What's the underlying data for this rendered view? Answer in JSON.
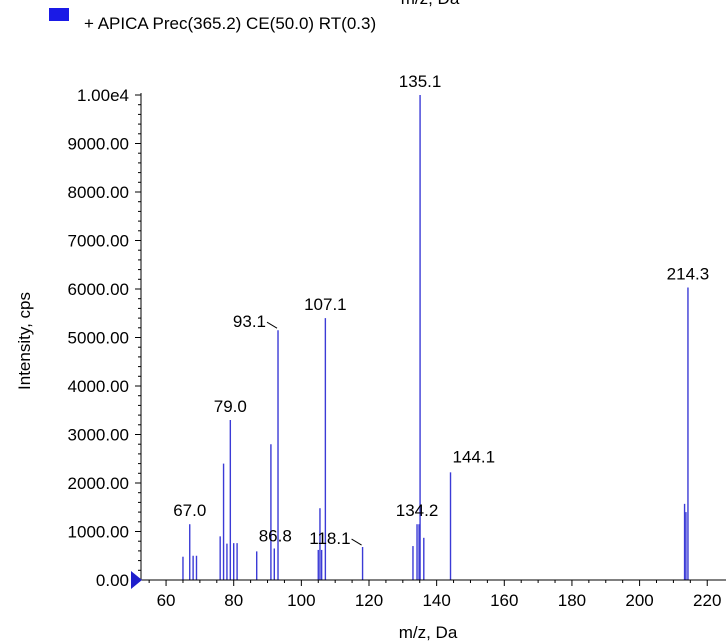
{
  "colors": {
    "series": "#3b3bd6",
    "legend_swatch": "#1a1ae6",
    "marker": "#1f1fcc",
    "axis": "#000000"
  },
  "chart_data": {
    "type": "bar",
    "title": "",
    "top_axis_label_partial": "m/z, Da",
    "xlabel": "m/z, Da",
    "ylabel": "Intensity, cps",
    "xlim": [
      52,
      222
    ],
    "ylim": [
      0,
      10000
    ],
    "x_ticks": [
      60,
      80,
      100,
      120,
      140,
      160,
      180,
      200,
      220
    ],
    "x_tick_labels": [
      "60",
      "80",
      "100",
      "120",
      "140",
      "160",
      "180",
      "200",
      "220"
    ],
    "y_ticks": [
      0,
      1000,
      2000,
      3000,
      4000,
      5000,
      6000,
      7000,
      8000,
      9000,
      10000
    ],
    "y_tick_labels": [
      "0.00",
      "1000.00",
      "2000.00",
      "3000.00",
      "4000.00",
      "5000.00",
      "6000.00",
      "7000.00",
      "8000.00",
      "9000.00",
      "1.00e4"
    ],
    "legend": {
      "position": "top-left",
      "entries": [
        "+ APICA Prec(365.2) CE(50.0) RT(0.3)"
      ]
    },
    "series": [
      {
        "name": "+ APICA Prec(365.2) CE(50.0) RT(0.3)",
        "peaks": [
          {
            "x": 65.0,
            "y": 480
          },
          {
            "x": 67.0,
            "y": 1150
          },
          {
            "x": 68.0,
            "y": 500
          },
          {
            "x": 69.0,
            "y": 500
          },
          {
            "x": 76.0,
            "y": 900
          },
          {
            "x": 77.0,
            "y": 2400
          },
          {
            "x": 78.0,
            "y": 750
          },
          {
            "x": 79.0,
            "y": 3300
          },
          {
            "x": 80.0,
            "y": 760
          },
          {
            "x": 81.0,
            "y": 760
          },
          {
            "x": 86.8,
            "y": 590
          },
          {
            "x": 91.0,
            "y": 2800
          },
          {
            "x": 92.0,
            "y": 650
          },
          {
            "x": 93.1,
            "y": 5150
          },
          {
            "x": 105.0,
            "y": 620
          },
          {
            "x": 105.5,
            "y": 1480
          },
          {
            "x": 106.0,
            "y": 620
          },
          {
            "x": 107.1,
            "y": 5400
          },
          {
            "x": 118.1,
            "y": 680
          },
          {
            "x": 133.0,
            "y": 700
          },
          {
            "x": 134.2,
            "y": 1150
          },
          {
            "x": 134.8,
            "y": 1150
          },
          {
            "x": 135.1,
            "y": 10000
          },
          {
            "x": 136.2,
            "y": 870
          },
          {
            "x": 144.1,
            "y": 2220
          },
          {
            "x": 213.3,
            "y": 1570
          },
          {
            "x": 213.7,
            "y": 1400
          },
          {
            "x": 214.3,
            "y": 6030
          }
        ]
      }
    ],
    "peak_labels": [
      {
        "text": "67.0",
        "x": 67.0,
        "y": 1150,
        "anchor": "middle",
        "leader": false
      },
      {
        "text": "79.0",
        "x": 79.0,
        "y": 3300,
        "anchor": "middle",
        "leader": false
      },
      {
        "text": "86.8",
        "x": 86.8,
        "y": 590,
        "anchor": "start",
        "leader": false
      },
      {
        "text": "93.1",
        "x": 93.1,
        "y": 5150,
        "anchor": "end",
        "leader": true
      },
      {
        "text": "107.1",
        "x": 107.1,
        "y": 5400,
        "anchor": "middle",
        "leader": false
      },
      {
        "text": "118.1",
        "x": 118.1,
        "y": 680,
        "anchor": "end",
        "leader": true
      },
      {
        "text": "134.2",
        "x": 134.2,
        "y": 1150,
        "anchor": "middle",
        "leader": false
      },
      {
        "text": "135.1",
        "x": 135.1,
        "y": 10000,
        "anchor": "middle",
        "leader": false
      },
      {
        "text": "144.1",
        "x": 144.1,
        "y": 2220,
        "anchor": "start",
        "leader": false
      },
      {
        "text": "214.3",
        "x": 214.3,
        "y": 6030,
        "anchor": "middle",
        "leader": false
      }
    ]
  }
}
